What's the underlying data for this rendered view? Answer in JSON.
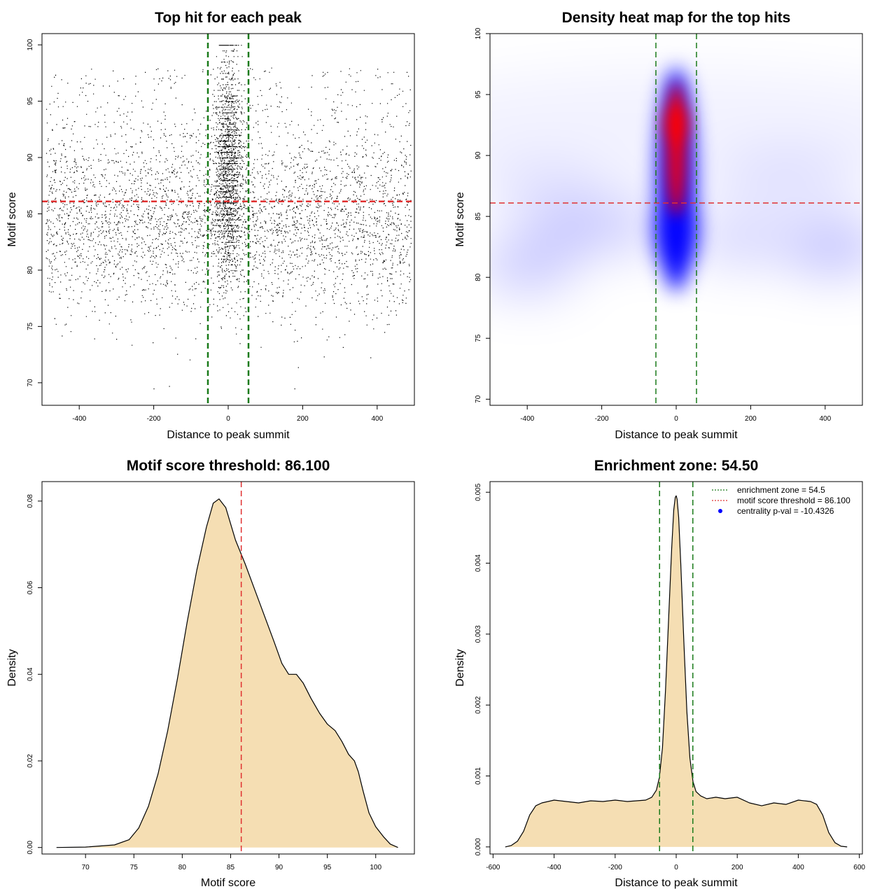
{
  "chart_data": [
    {
      "id": "scatter",
      "type": "scatter",
      "title": "Top hit for each peak",
      "xlabel": "Distance to peak summit",
      "ylabel": "Motif score",
      "xlim": [
        -500,
        500
      ],
      "ylim": [
        68,
        101
      ],
      "xticks": [
        -400,
        -200,
        0,
        200,
        400
      ],
      "yticks": [
        70,
        75,
        80,
        85,
        90,
        95,
        100
      ],
      "hline": {
        "y": 86.1,
        "color": "#e03030",
        "style": "dashed"
      },
      "vlines": [
        {
          "x": -54.5,
          "color": "#1a7a1a",
          "style": "dashed"
        },
        {
          "x": 54.5,
          "color": "#1a7a1a",
          "style": "dashed"
        }
      ],
      "point_color": "#000000",
      "grid": false,
      "points_description": "about 6000 points; uniform background across x in [-490, 490] with scores mostly 76-92; dense central band within |x| < 50 with scores up to 100"
    },
    {
      "id": "heatmap",
      "type": "heatmap",
      "title": "Density heat map for the top hits",
      "xlabel": "Distance to peak summit",
      "ylabel": "Motif score",
      "xlim": [
        -500,
        500
      ],
      "ylim": [
        69.5,
        100
      ],
      "xticks": [
        -400,
        -200,
        0,
        200,
        400
      ],
      "yticks": [
        70,
        75,
        80,
        85,
        90,
        95,
        100
      ],
      "hline": {
        "y": 86.1,
        "color": "#e03030",
        "style": "dashed"
      },
      "vlines": [
        {
          "x": -54.5,
          "color": "#1a7a1a",
          "style": "dashed"
        },
        {
          "x": 54.5,
          "color": "#1a7a1a",
          "style": "dashed"
        }
      ],
      "colors": {
        "low": "#ffffff",
        "mid": "#0000ff",
        "high": "#ff0000"
      },
      "density_peak": {
        "x": 0,
        "y": 92.5
      },
      "grid": false
    },
    {
      "id": "score-density",
      "type": "area",
      "title": "Motif score threshold: 86.100",
      "xlabel": "Motif score",
      "ylabel": "Density",
      "xlim": [
        65.5,
        104
      ],
      "ylim": [
        -0.0015,
        0.0845
      ],
      "xticks": [
        70,
        75,
        80,
        85,
        90,
        95,
        100
      ],
      "yticks": [
        0.0,
        0.02,
        0.04,
        0.06,
        0.08
      ],
      "ytick_labels": [
        "0.00",
        "0.02",
        "0.04",
        "0.06",
        "0.08"
      ],
      "x": [
        67,
        70,
        73,
        74.5,
        75.5,
        76.5,
        77.5,
        78.5,
        79.5,
        80.5,
        81.5,
        82.5,
        83.2,
        83.8,
        84.5,
        85.5,
        86.5,
        87.5,
        88.5,
        89.5,
        90.3,
        91,
        91.8,
        92.5,
        93.3,
        94.2,
        95,
        95.8,
        96.5,
        97.2,
        97.8,
        98.2,
        98.7,
        99.3,
        100,
        100.8,
        101.5,
        102.3
      ],
      "values": [
        0.0,
        0.0001,
        0.0006,
        0.0018,
        0.0045,
        0.0095,
        0.017,
        0.027,
        0.039,
        0.052,
        0.064,
        0.074,
        0.0795,
        0.0805,
        0.0785,
        0.071,
        0.0655,
        0.0595,
        0.0535,
        0.0475,
        0.0425,
        0.04,
        0.04,
        0.038,
        0.0345,
        0.031,
        0.0285,
        0.027,
        0.0245,
        0.0215,
        0.02,
        0.0175,
        0.013,
        0.008,
        0.0048,
        0.0025,
        0.0008,
        0.0
      ],
      "fill": "#f5deb3",
      "vline": {
        "x": 86.1,
        "color": "#e03030",
        "style": "dashed"
      },
      "grid": false
    },
    {
      "id": "distance-density",
      "type": "area",
      "title": "Enrichment zone: 54.50",
      "xlabel": "Distance to peak summit",
      "ylabel": "Density",
      "xlim": [
        -610,
        610
      ],
      "ylim": [
        -0.0001,
        0.00515
      ],
      "xticks": [
        -600,
        -400,
        -200,
        0,
        200,
        400,
        600
      ],
      "yticks": [
        0.0,
        0.001,
        0.002,
        0.003,
        0.004,
        0.005
      ],
      "ytick_labels": [
        "0.000",
        "0.001",
        "0.002",
        "0.003",
        "0.004",
        "0.005"
      ],
      "x": [
        -560,
        -540,
        -520,
        -500,
        -480,
        -460,
        -440,
        -400,
        -360,
        -320,
        -280,
        -240,
        -200,
        -160,
        -130,
        -100,
        -80,
        -65,
        -55,
        -45,
        -35,
        -25,
        -15,
        -8,
        -3,
        0,
        3,
        8,
        15,
        25,
        35,
        45,
        55,
        65,
        80,
        100,
        130,
        160,
        200,
        240,
        280,
        320,
        360,
        400,
        440,
        460,
        480,
        500,
        520,
        540,
        560
      ],
      "values": [
        0.0,
        2e-05,
        8e-05,
        0.00022,
        0.00045,
        0.00058,
        0.00062,
        0.00066,
        0.00064,
        0.00062,
        0.00065,
        0.00064,
        0.00066,
        0.00064,
        0.00065,
        0.00066,
        0.0007,
        0.0008,
        0.00098,
        0.0014,
        0.0022,
        0.0032,
        0.0042,
        0.00475,
        0.00493,
        0.00495,
        0.0049,
        0.00465,
        0.004,
        0.0029,
        0.0019,
        0.00125,
        0.00092,
        0.00078,
        0.00072,
        0.00068,
        0.0007,
        0.00068,
        0.0007,
        0.00062,
        0.00058,
        0.00062,
        0.0006,
        0.00066,
        0.00064,
        0.0006,
        0.00045,
        0.0002,
        6e-05,
        1e-05,
        0.0
      ],
      "fill": "#f5deb3",
      "vlines": [
        {
          "x": -54.5,
          "color": "#1a7a1a",
          "style": "dashed"
        },
        {
          "x": 54.5,
          "color": "#1a7a1a",
          "style": "dashed"
        }
      ],
      "legend": {
        "position": "top-right",
        "entries": [
          {
            "label": "enrichment zone = 54.5",
            "color": "#1a7a1a",
            "style": "dotted-line"
          },
          {
            "label": "motif score threshold = 86.100",
            "color": "#e03030",
            "style": "dotted-line"
          },
          {
            "label": "centrality p-val = -10.4326",
            "color": "#0000ff",
            "style": "point"
          }
        ]
      },
      "grid": false
    }
  ]
}
